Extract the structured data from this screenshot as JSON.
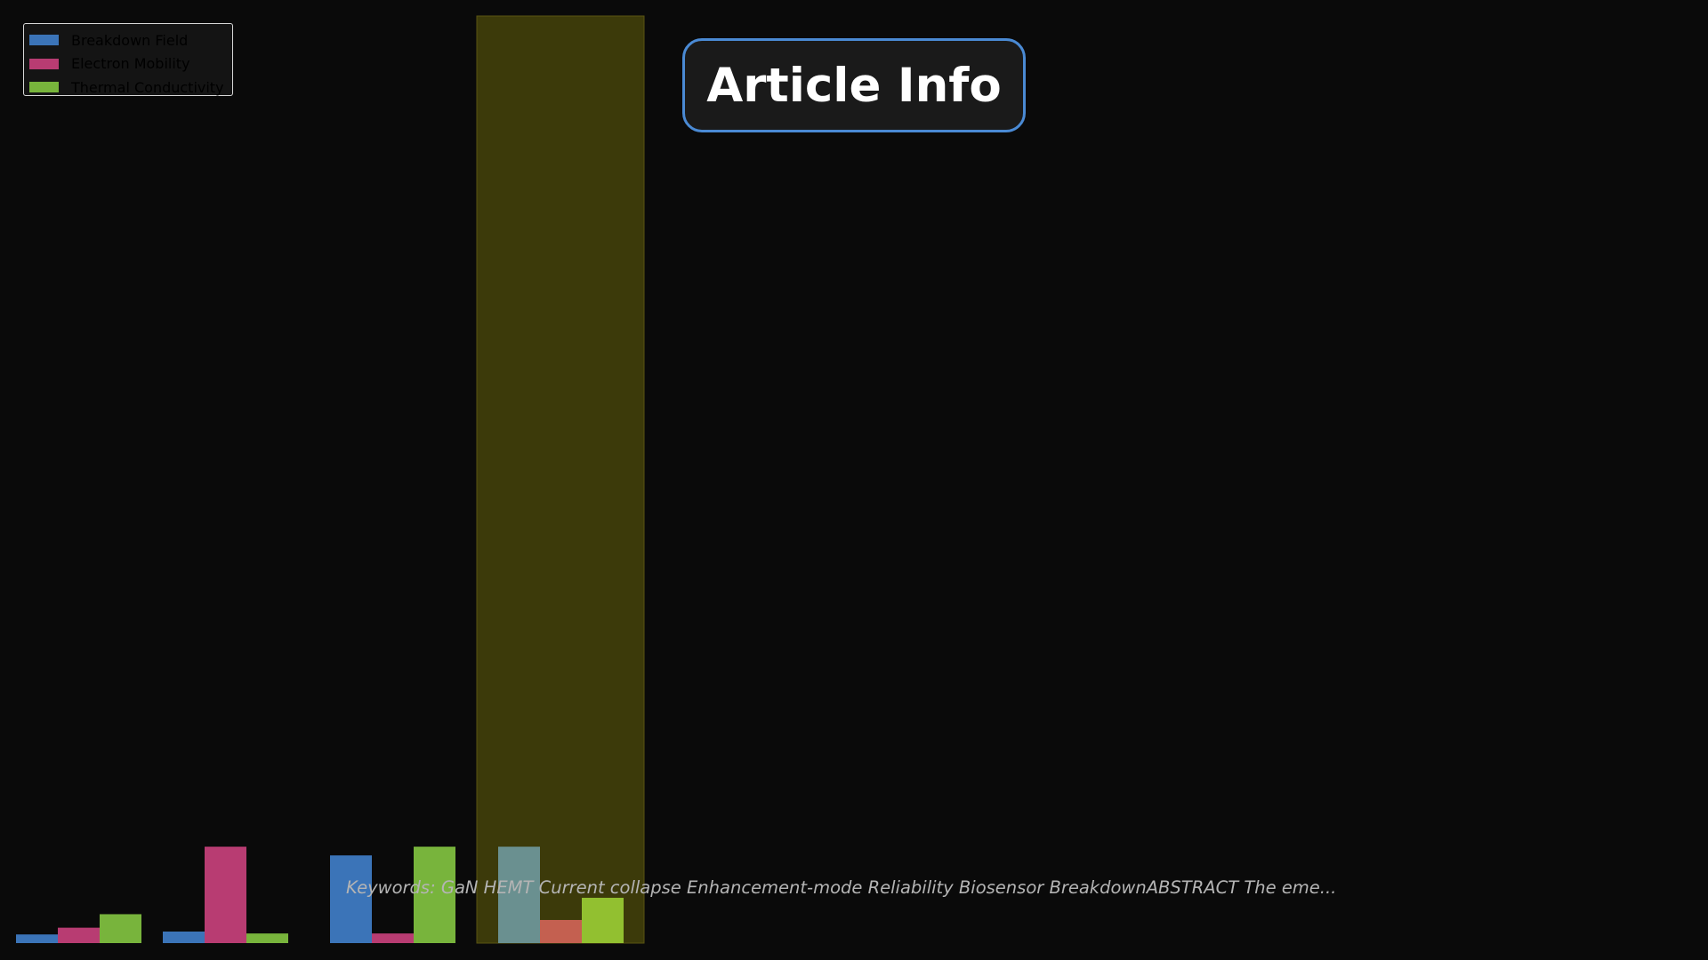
{
  "title": "Article Info",
  "keywords_text": "Keywords: GaN HEMT Current collapse Enhancement-mode Reliability Biosensor BreakdownABSTRACT The eme...",
  "colors": {
    "background": "#0a0a0a",
    "title_border": "#4a8ad4",
    "highlight_fill": "#3c3a0a",
    "highlight_stroke": "#5a5412"
  },
  "chart_data": {
    "type": "bar",
    "categories": [
      "",
      "",
      "",
      ""
    ],
    "series": [
      {
        "name": "Breakdown Field",
        "color": "#3b74b8",
        "highlight_color": "#6a9090",
        "values": [
          0.09,
          0.12,
          0.91,
          1.0
        ]
      },
      {
        "name": "Electron Mobility",
        "color": "#b83c72",
        "highlight_color": "#c46050",
        "values": [
          0.16,
          1.0,
          0.1,
          0.24
        ]
      },
      {
        "name": "Thermal Conductivity",
        "color": "#78b43c",
        "highlight_color": "#92c030",
        "values": [
          0.3,
          0.1,
          1.0,
          0.47
        ]
      }
    ],
    "highlighted_category_index": 3,
    "ylim": [
      0,
      10
    ],
    "title": "",
    "xlabel": "",
    "ylabel": "",
    "grid": false,
    "legend": "top-left"
  }
}
